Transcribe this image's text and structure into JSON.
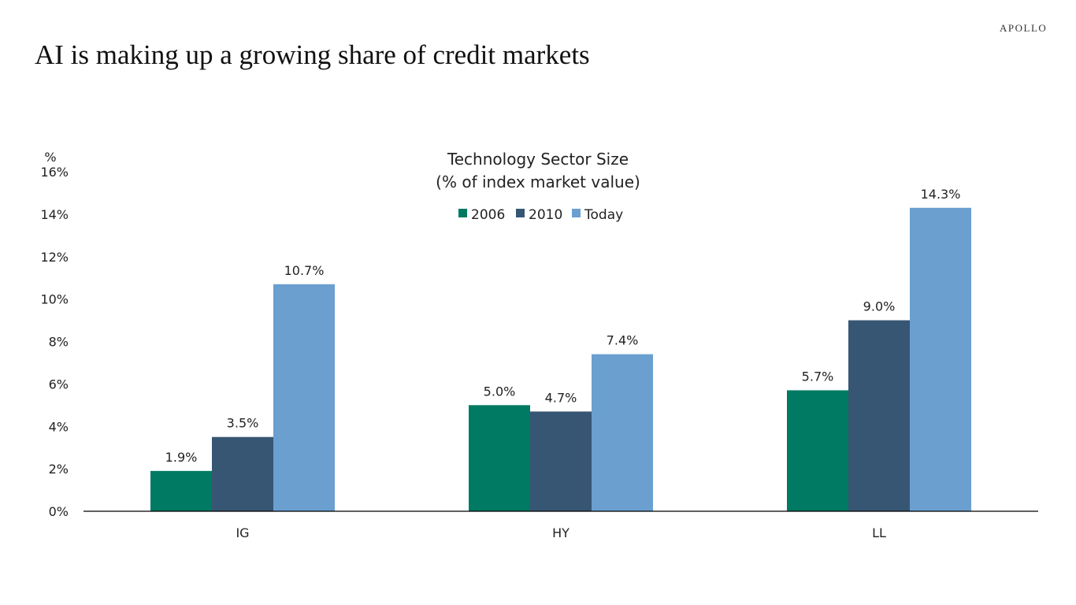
{
  "header": {
    "title": "AI is making up a growing share of credit markets",
    "logo": "APOLLO"
  },
  "chart_data": {
    "type": "bar",
    "title": "Technology Sector Size",
    "subtitle": "(% of index market value)",
    "ylabel": "%",
    "categories": [
      "IG",
      "HY",
      "LL"
    ],
    "series": [
      {
        "name": "2006",
        "values": [
          1.9,
          5.0,
          5.7
        ],
        "color": "#007A62"
      },
      {
        "name": "2010",
        "values": [
          3.5,
          4.7,
          9.0
        ],
        "color": "#375674"
      },
      {
        "name": "Today",
        "values": [
          10.7,
          7.4,
          14.3
        ],
        "color": "#6A9FD0"
      }
    ],
    "data_labels": [
      [
        "1.9%",
        "5.0%",
        "5.7%"
      ],
      [
        "3.5%",
        "4.7%",
        "9.0%"
      ],
      [
        "10.7%",
        "7.4%",
        "14.3%"
      ]
    ],
    "ylim": [
      0,
      16
    ],
    "yticks": [
      0,
      2,
      4,
      6,
      8,
      10,
      12,
      14,
      16
    ],
    "ytick_labels": [
      "0%",
      "2%",
      "4%",
      "6%",
      "8%",
      "10%",
      "12%",
      "14%",
      "16%"
    ],
    "grid": false,
    "legend": "top-center"
  }
}
